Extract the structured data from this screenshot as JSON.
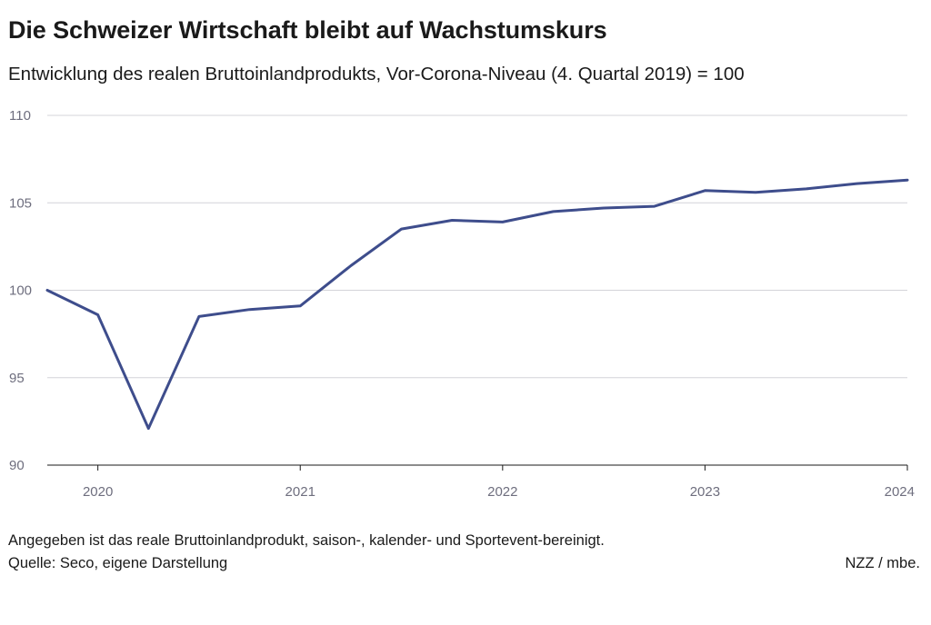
{
  "header": {
    "title": "Die Schweizer Wirtschaft bleibt auf Wachstumskurs",
    "subtitle": "Entwicklung des realen Bruttoinlandprodukts, Vor-Corona-Niveau (4. Quartal 2019) = 100"
  },
  "footer": {
    "note": "Angegeben ist das reale Bruttoinlandprodukt, saison-, kalender- und Sportevent-bereinigt.",
    "source": "Quelle: Seco, eigene Darstellung",
    "credit": "NZZ / mbe."
  },
  "chart_data": {
    "type": "line",
    "title": "Die Schweizer Wirtschaft bleibt auf Wachstumskurs",
    "subtitle": "Entwicklung des realen Bruttoinlandprodukts, Vor-Corona-Niveau (4. Quartal 2019) = 100",
    "xlabel": "",
    "ylabel": "",
    "x": [
      "2019-Q4",
      "2020-Q1",
      "2020-Q2",
      "2020-Q3",
      "2020-Q4",
      "2021-Q1",
      "2021-Q2",
      "2021-Q3",
      "2021-Q4",
      "2022-Q1",
      "2022-Q2",
      "2022-Q3",
      "2022-Q4",
      "2023-Q1",
      "2023-Q2",
      "2023-Q3",
      "2023-Q4",
      "2024-Q1"
    ],
    "series": [
      {
        "values": [
          100.0,
          98.6,
          92.1,
          98.5,
          98.9,
          99.1,
          101.4,
          103.5,
          104.0,
          103.9,
          104.5,
          104.7,
          104.8,
          105.7,
          105.6,
          105.8,
          106.1,
          106.3
        ]
      }
    ],
    "xticks": [
      "2020",
      "2021",
      "2022",
      "2023",
      "2024"
    ],
    "yticks": [
      90,
      95,
      100,
      105,
      110
    ],
    "ylim": [
      90,
      110
    ],
    "grid": "horizontal",
    "legend": "none",
    "colors": {
      "line": "#3e4d8c",
      "grid": "#d4d4d8",
      "axis": "#1a1a1a",
      "tick_text": "#6e6e7e"
    }
  }
}
